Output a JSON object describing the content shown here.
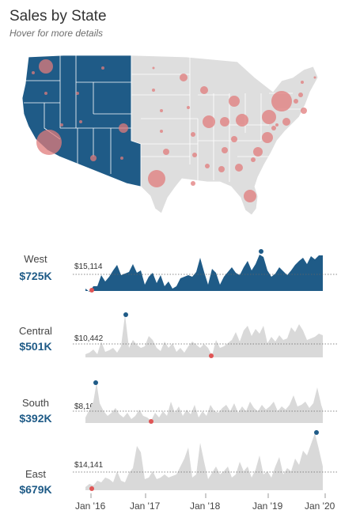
{
  "header": {
    "title": "Sales by State",
    "subtitle": "Hover for more details"
  },
  "colors": {
    "west_fill": "#1f5b87",
    "other_fill": "#dedede",
    "bubble": "#e07b7b",
    "spark_gray": "#d9d9d9",
    "max_dot": "#1f5b87",
    "min_dot": "#e05555"
  },
  "regions": [
    {
      "name": "West",
      "total": "$725K",
      "ref_label": "$15,114",
      "selected": true
    },
    {
      "name": "Central",
      "total": "$501K",
      "ref_label": "$10,442",
      "selected": false
    },
    {
      "name": "South",
      "total": "$392K",
      "ref_label": "$8,161",
      "selected": false
    },
    {
      "name": "East",
      "total": "$679K",
      "ref_label": "$14,141",
      "selected": false
    }
  ],
  "time_axis": {
    "labels": [
      "Jan '16",
      "Jan '17",
      "Jan '18",
      "Jan '19",
      "Jan '20"
    ]
  }
}
